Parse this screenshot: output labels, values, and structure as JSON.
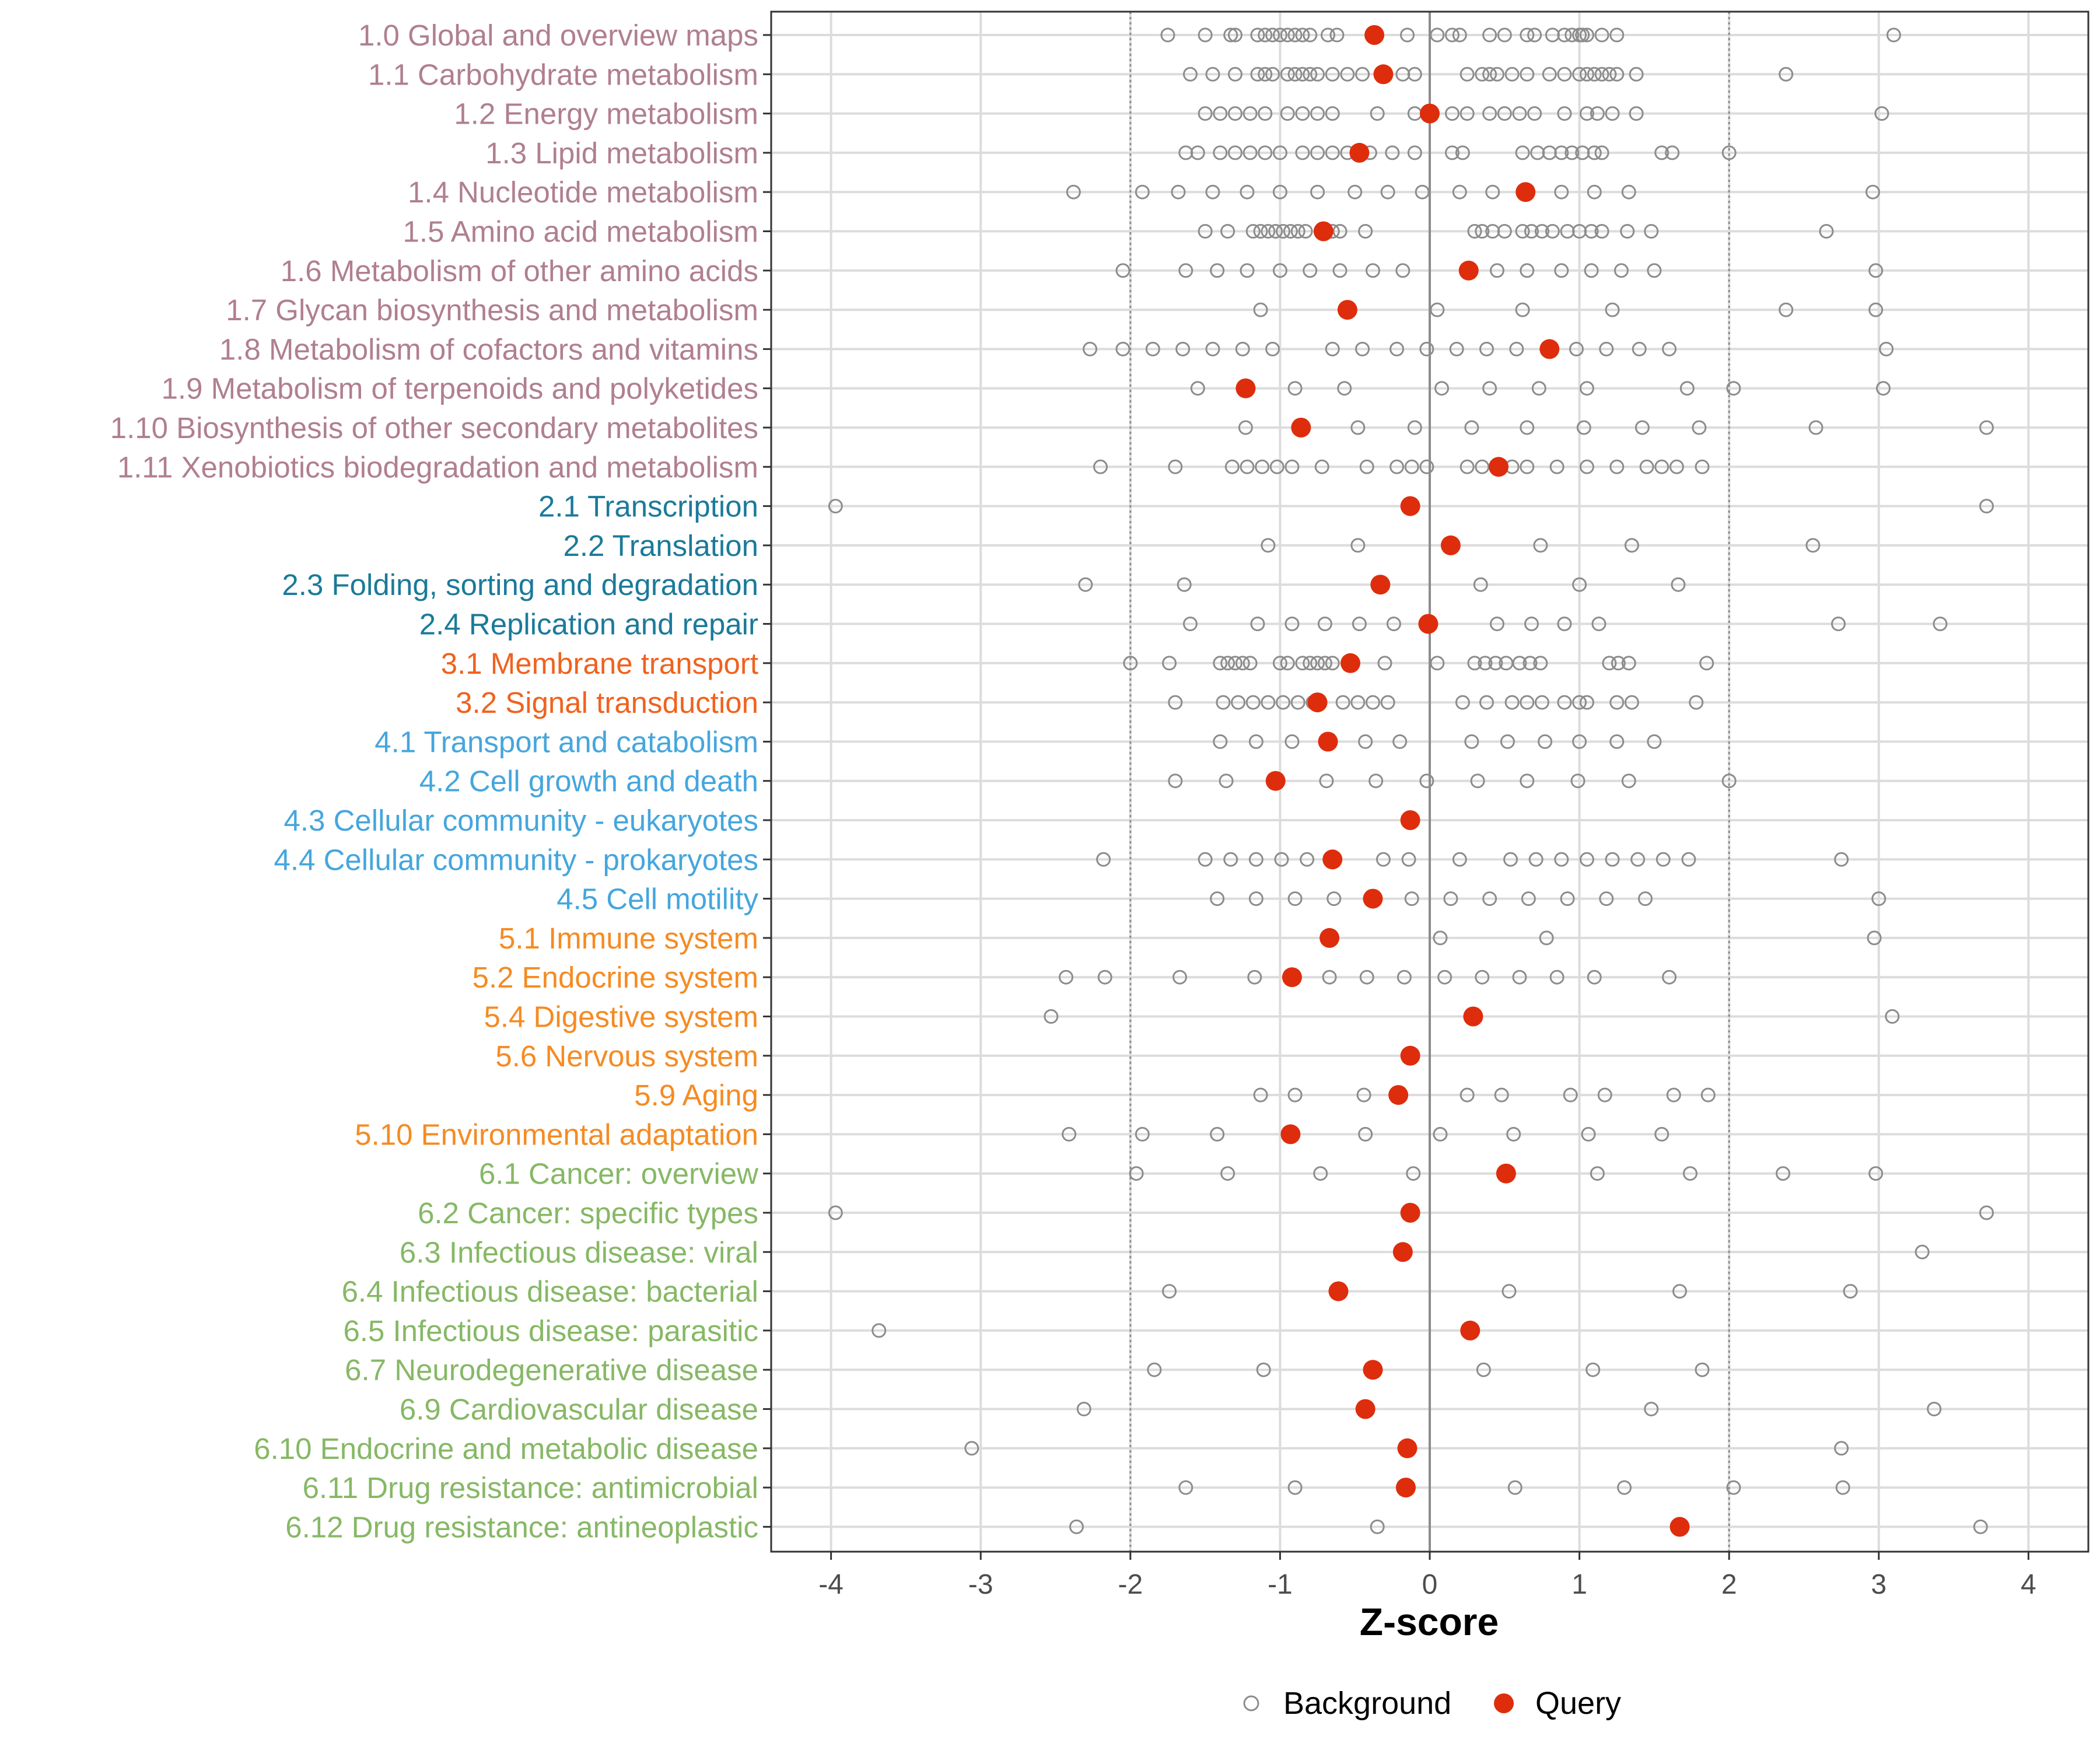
{
  "colors": {
    "metabolism": "#b07f90",
    "genetic": "#1b7a9a",
    "environmental": "#f0621e",
    "cellular": "#45a6dd",
    "organismal": "#f58b22",
    "disease": "#86b865",
    "background_point": "#8c8c8c",
    "query_point": "#de2d0c"
  },
  "chart_data": {
    "type": "scatter",
    "title": "",
    "xlabel": "Z-score",
    "ylabel": "",
    "xlim": [
      -4.4,
      4.4
    ],
    "xticks": [
      -4,
      -3,
      -2,
      -1,
      0,
      1,
      2,
      3,
      4
    ],
    "xtick_labels": [
      "-4",
      "-3",
      "-2",
      "-1",
      "0",
      "1",
      "2",
      "3",
      "4"
    ],
    "threshold_lines": [
      -2,
      2
    ],
    "zero_line": 0,
    "grid": true,
    "legend": {
      "position": "bottom",
      "entries": [
        {
          "label": "Background",
          "marker": "open-circle"
        },
        {
          "label": "Query",
          "marker": "filled-circle"
        }
      ]
    },
    "categories": [
      {
        "label": "1.0 Global and overview maps",
        "group": "metabolism",
        "query": -0.37,
        "background": [
          -1.75,
          -1.5,
          -1.33,
          -1.3,
          -1.15,
          -1.1,
          -1.05,
          -1.0,
          -0.95,
          -0.9,
          -0.85,
          -0.8,
          -0.68,
          -0.62,
          -0.15,
          0.05,
          0.15,
          0.2,
          0.4,
          0.5,
          0.65,
          0.7,
          0.82,
          0.9,
          0.95,
          1.0,
          1.02,
          1.05,
          1.15,
          1.25,
          3.1
        ]
      },
      {
        "label": "1.1 Carbohydrate metabolism",
        "group": "metabolism",
        "query": -0.31,
        "background": [
          -1.6,
          -1.45,
          -1.3,
          -1.15,
          -1.1,
          -1.05,
          -0.95,
          -0.9,
          -0.85,
          -0.8,
          -0.75,
          -0.65,
          -0.55,
          -0.45,
          -0.18,
          -0.1,
          0.25,
          0.35,
          0.4,
          0.45,
          0.55,
          0.65,
          0.8,
          0.9,
          1.0,
          1.05,
          1.1,
          1.15,
          1.2,
          1.25,
          1.38,
          2.38
        ]
      },
      {
        "label": "1.2 Energy metabolism",
        "group": "metabolism",
        "query": 0.0,
        "background": [
          -1.5,
          -1.4,
          -1.3,
          -1.2,
          -1.1,
          -0.95,
          -0.85,
          -0.75,
          -0.65,
          -0.35,
          -0.1,
          0.15,
          0.25,
          0.4,
          0.5,
          0.6,
          0.7,
          0.9,
          1.05,
          1.12,
          1.22,
          1.38,
          3.02
        ]
      },
      {
        "label": "1.3 Lipid metabolism",
        "group": "metabolism",
        "query": -0.47,
        "background": [
          -1.63,
          -1.55,
          -1.4,
          -1.3,
          -1.2,
          -1.1,
          -1.0,
          -0.85,
          -0.75,
          -0.65,
          -0.55,
          -0.4,
          -0.25,
          -0.1,
          0.15,
          0.22,
          0.62,
          0.72,
          0.8,
          0.88,
          0.95,
          1.02,
          1.1,
          1.15,
          1.55,
          1.62,
          2.0
        ]
      },
      {
        "label": "1.4 Nucleotide metabolism",
        "group": "metabolism",
        "query": 0.64,
        "background": [
          -2.38,
          -1.92,
          -1.68,
          -1.45,
          -1.22,
          -1.0,
          -0.75,
          -0.5,
          -0.28,
          -0.05,
          0.2,
          0.42,
          0.88,
          1.1,
          1.33,
          2.96
        ]
      },
      {
        "label": "1.5 Amino acid metabolism",
        "group": "metabolism",
        "query": -0.71,
        "background": [
          -1.5,
          -1.35,
          -1.18,
          -1.13,
          -1.08,
          -1.03,
          -0.98,
          -0.93,
          -0.88,
          -0.83,
          -0.65,
          -0.6,
          -0.43,
          0.3,
          0.35,
          0.42,
          0.5,
          0.62,
          0.68,
          0.75,
          0.82,
          0.92,
          1.0,
          1.08,
          1.15,
          1.32,
          1.48,
          2.65
        ]
      },
      {
        "label": "1.6 Metabolism of other amino acids",
        "group": "metabolism",
        "query": 0.26,
        "background": [
          -2.05,
          -1.63,
          -1.42,
          -1.22,
          -1.0,
          -0.8,
          -0.6,
          -0.38,
          -0.18,
          0.45,
          0.65,
          0.88,
          1.08,
          1.28,
          1.5,
          2.98
        ]
      },
      {
        "label": "1.7 Glycan biosynthesis and metabolism",
        "group": "metabolism",
        "query": -0.55,
        "background": [
          -1.13,
          0.05,
          0.62,
          1.22,
          2.38,
          2.98
        ]
      },
      {
        "label": "1.8 Metabolism of cofactors and vitamins",
        "group": "metabolism",
        "query": 0.8,
        "background": [
          -2.27,
          -2.05,
          -1.85,
          -1.65,
          -1.45,
          -1.25,
          -1.05,
          -0.65,
          -0.45,
          -0.22,
          -0.02,
          0.18,
          0.38,
          0.58,
          0.98,
          1.18,
          1.4,
          1.6,
          3.05
        ]
      },
      {
        "label": "1.9 Metabolism of terpenoids and polyketides",
        "group": "metabolism",
        "query": -1.23,
        "background": [
          -1.55,
          -0.9,
          -0.57,
          0.08,
          0.4,
          0.73,
          1.05,
          1.72,
          2.03,
          3.03
        ]
      },
      {
        "label": "1.10 Biosynthesis of other secondary metabolites",
        "group": "metabolism",
        "query": -0.86,
        "background": [
          -1.23,
          -0.48,
          -0.1,
          0.28,
          0.65,
          1.03,
          1.42,
          1.8,
          2.58,
          3.72
        ]
      },
      {
        "label": "1.11 Xenobiotics biodegradation and metabolism",
        "group": "metabolism",
        "query": 0.46,
        "background": [
          -2.2,
          -1.7,
          -1.32,
          -1.22,
          -1.12,
          -1.02,
          -0.92,
          -0.72,
          -0.42,
          -0.22,
          -0.12,
          -0.02,
          0.25,
          0.35,
          0.55,
          0.65,
          0.85,
          1.05,
          1.25,
          1.45,
          1.55,
          1.65,
          1.82
        ]
      },
      {
        "label": "2.1 Transcription",
        "group": "genetic",
        "query": -0.13,
        "background": [
          -3.97,
          3.72
        ]
      },
      {
        "label": "2.2 Translation",
        "group": "genetic",
        "query": 0.14,
        "background": [
          -1.08,
          -0.48,
          0.74,
          1.35,
          2.56
        ]
      },
      {
        "label": "2.3 Folding, sorting and degradation",
        "group": "genetic",
        "query": -0.33,
        "background": [
          -2.3,
          -1.64,
          0.34,
          1.0,
          1.66
        ]
      },
      {
        "label": "2.4 Replication and repair",
        "group": "genetic",
        "query": -0.01,
        "background": [
          -1.6,
          -1.15,
          -0.92,
          -0.7,
          -0.47,
          -0.24,
          0.45,
          0.68,
          0.9,
          1.13,
          2.73,
          3.41
        ]
      },
      {
        "label": "3.1 Membrane transport",
        "group": "environmental",
        "query": -0.53,
        "background": [
          -2.0,
          -1.74,
          -1.4,
          -1.35,
          -1.3,
          -1.25,
          -1.2,
          -1.0,
          -0.95,
          -0.85,
          -0.8,
          -0.75,
          -0.7,
          -0.65,
          -0.3,
          0.05,
          0.3,
          0.37,
          0.44,
          0.51,
          0.6,
          0.67,
          0.74,
          1.2,
          1.26,
          1.33,
          1.85
        ]
      },
      {
        "label": "3.2 Signal transduction",
        "group": "environmental",
        "query": -0.75,
        "background": [
          -1.7,
          -1.38,
          -1.28,
          -1.18,
          -1.08,
          -0.98,
          -0.88,
          -0.78,
          -0.58,
          -0.48,
          -0.38,
          -0.28,
          0.22,
          0.38,
          0.55,
          0.65,
          0.75,
          0.9,
          1.0,
          1.05,
          1.25,
          1.35,
          1.78
        ]
      },
      {
        "label": "4.1 Transport and catabolism",
        "group": "cellular",
        "query": -0.68,
        "background": [
          -1.4,
          -1.16,
          -0.92,
          -0.43,
          -0.2,
          0.28,
          0.52,
          0.77,
          1.0,
          1.25,
          1.5
        ]
      },
      {
        "label": "4.2 Cell growth and death",
        "group": "cellular",
        "query": -1.03,
        "background": [
          -1.7,
          -1.36,
          -0.69,
          -0.36,
          -0.02,
          0.32,
          0.65,
          0.99,
          1.33,
          2.0
        ]
      },
      {
        "label": "4.3 Cellular community - eukaryotes",
        "group": "cellular",
        "query": -0.13,
        "background": []
      },
      {
        "label": "4.4 Cellular community - prokaryotes",
        "group": "cellular",
        "query": -0.65,
        "background": [
          -2.18,
          -1.5,
          -1.33,
          -1.16,
          -0.99,
          -0.82,
          -0.31,
          -0.14,
          0.2,
          0.54,
          0.71,
          0.88,
          1.05,
          1.22,
          1.39,
          1.56,
          1.73,
          2.75
        ]
      },
      {
        "label": "4.5 Cell motility",
        "group": "cellular",
        "query": -0.38,
        "background": [
          -1.42,
          -1.16,
          -0.9,
          -0.64,
          -0.12,
          0.14,
          0.4,
          0.66,
          0.92,
          1.18,
          1.44,
          3.0
        ]
      },
      {
        "label": "5.1 Immune system",
        "group": "organismal",
        "query": -0.67,
        "background": [
          0.07,
          0.78,
          2.97
        ]
      },
      {
        "label": "5.2 Endocrine system",
        "group": "organismal",
        "query": -0.92,
        "background": [
          -2.43,
          -2.17,
          -1.67,
          -1.17,
          -0.67,
          -0.42,
          -0.17,
          0.1,
          0.35,
          0.6,
          0.85,
          1.1,
          1.6
        ]
      },
      {
        "label": "5.4 Digestive system",
        "group": "organismal",
        "query": 0.29,
        "background": [
          -2.53,
          3.09
        ]
      },
      {
        "label": "5.6 Nervous system",
        "group": "organismal",
        "query": -0.13,
        "background": []
      },
      {
        "label": "5.9 Aging",
        "group": "organismal",
        "query": -0.21,
        "background": [
          -1.13,
          -0.9,
          -0.44,
          0.25,
          0.48,
          0.94,
          1.17,
          1.63,
          1.86
        ]
      },
      {
        "label": "5.10 Environmental adaptation",
        "group": "organismal",
        "query": -0.93,
        "background": [
          -2.41,
          -1.92,
          -1.42,
          -0.43,
          0.07,
          0.56,
          1.06,
          1.55
        ]
      },
      {
        "label": "6.1 Cancer: overview",
        "group": "disease",
        "query": 0.51,
        "background": [
          -1.96,
          -1.35,
          -0.73,
          -0.11,
          1.12,
          1.74,
          2.36,
          2.98
        ]
      },
      {
        "label": "6.2 Cancer: specific types",
        "group": "disease",
        "query": -0.13,
        "background": [
          -3.97,
          3.72
        ]
      },
      {
        "label": "6.3 Infectious disease: viral",
        "group": "disease",
        "query": -0.18,
        "background": [
          3.29
        ]
      },
      {
        "label": "6.4 Infectious disease: bacterial",
        "group": "disease",
        "query": -0.61,
        "background": [
          -1.74,
          0.53,
          1.67,
          2.81
        ]
      },
      {
        "label": "6.5 Infectious disease: parasitic",
        "group": "disease",
        "query": 0.27,
        "background": [
          -3.68
        ]
      },
      {
        "label": "6.7 Neurodegenerative disease",
        "group": "disease",
        "query": -0.38,
        "background": [
          -1.84,
          -1.11,
          0.36,
          1.09,
          1.82
        ]
      },
      {
        "label": "6.9 Cardiovascular disease",
        "group": "disease",
        "query": -0.43,
        "background": [
          -2.31,
          1.48,
          3.37
        ]
      },
      {
        "label": "6.10 Endocrine and metabolic disease",
        "group": "disease",
        "query": -0.15,
        "background": [
          -3.06,
          2.75
        ]
      },
      {
        "label": "6.11 Drug resistance: antimicrobial",
        "group": "disease",
        "query": -0.16,
        "background": [
          -1.63,
          -0.9,
          0.57,
          1.3,
          2.03,
          2.76
        ]
      },
      {
        "label": "6.12 Drug resistance: antineoplastic",
        "group": "disease",
        "query": 1.67,
        "background": [
          -2.36,
          -0.35,
          3.68
        ]
      }
    ]
  }
}
